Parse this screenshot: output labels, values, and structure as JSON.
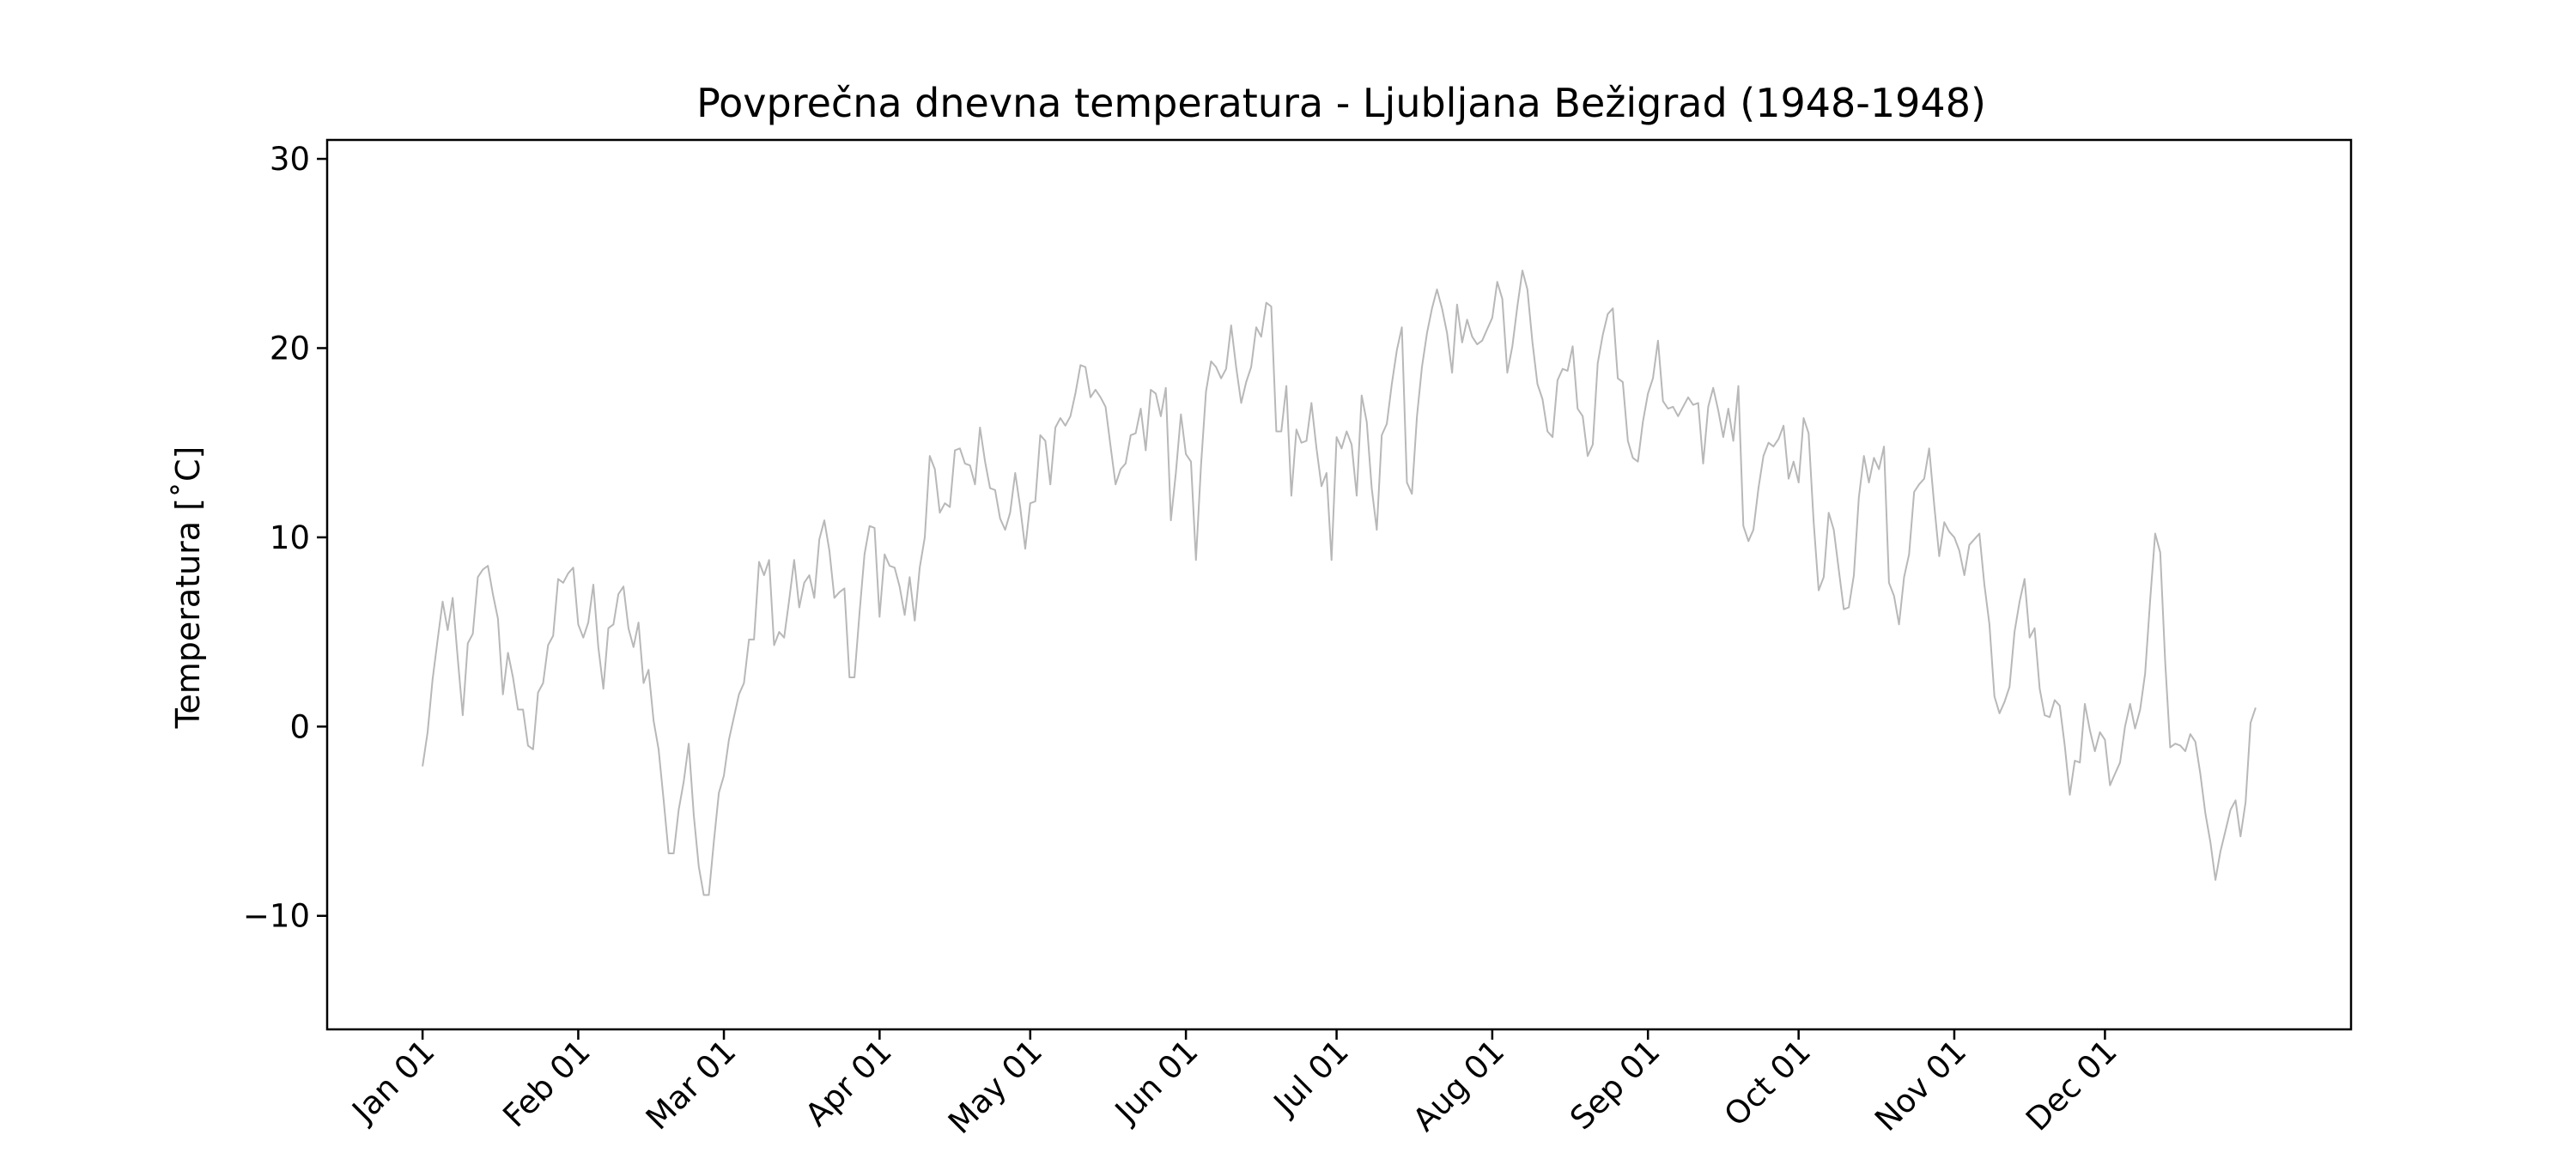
{
  "chart_data": {
    "type": "line",
    "title": "Povprečna dnevna temperatura - Ljubljana Bežigrad (1948-1948)",
    "xlabel": "",
    "ylabel": "Temperatura [˚C]",
    "ylim": [
      -16,
      31
    ],
    "xlim": [
      "1947-12-13",
      "1949-01-19"
    ],
    "grid": false,
    "legend": "none",
    "y_ticks": [
      30,
      20,
      10,
      0,
      -10
    ],
    "y_tick_labels": [
      "30",
      "20",
      "10",
      "0",
      "−10"
    ],
    "x_ticks": [
      {
        "date": "1948-01-01",
        "label": "Jan 01"
      },
      {
        "date": "1948-02-01",
        "label": "Feb 01"
      },
      {
        "date": "1948-03-01",
        "label": "Mar 01"
      },
      {
        "date": "1948-04-01",
        "label": "Apr 01"
      },
      {
        "date": "1948-05-01",
        "label": "May 01"
      },
      {
        "date": "1948-06-01",
        "label": "Jun 01"
      },
      {
        "date": "1948-07-01",
        "label": "Jul 01"
      },
      {
        "date": "1948-08-01",
        "label": "Aug 01"
      },
      {
        "date": "1948-09-01",
        "label": "Sep 01"
      },
      {
        "date": "1948-10-01",
        "label": "Oct 01"
      },
      {
        "date": "1948-11-01",
        "label": "Nov 01"
      },
      {
        "date": "1948-12-01",
        "label": "Dec 01"
      }
    ],
    "series": [
      {
        "color": "#b8b8b8",
        "x_start": "1948-01-01",
        "values": [
          -2.1,
          -0.3,
          2.5,
          4.6,
          6.6,
          5.1,
          6.8,
          3.6,
          0.6,
          4.4,
          4.9,
          7.9,
          8.3,
          8.5,
          7.0,
          5.7,
          1.7,
          3.9,
          2.6,
          0.9,
          0.9,
          -1.0,
          -1.2,
          1.8,
          2.3,
          4.3,
          4.8,
          7.8,
          7.6,
          8.1,
          8.4,
          5.4,
          4.7,
          5.5,
          7.5,
          4.2,
          2.0,
          5.2,
          5.4,
          7.0,
          7.4,
          5.2,
          4.2,
          5.5,
          2.3,
          3.0,
          0.3,
          -1.2,
          -3.9,
          -6.7,
          -6.7,
          -4.4,
          -2.9,
          -0.9,
          -4.7,
          -7.4,
          -8.9,
          -8.9,
          -6.1,
          -3.5,
          -2.6,
          -0.7,
          0.5,
          1.7,
          2.3,
          4.6,
          4.6,
          8.7,
          8.0,
          8.8,
          4.3,
          5.0,
          4.7,
          6.7,
          8.8,
          6.3,
          7.6,
          8.0,
          6.8,
          9.9,
          10.9,
          9.3,
          6.8,
          7.1,
          7.3,
          2.6,
          2.6,
          6.0,
          9.1,
          10.6,
          10.5,
          5.8,
          9.1,
          8.5,
          8.4,
          7.4,
          5.9,
          7.9,
          5.6,
          8.4,
          10.0,
          14.3,
          13.6,
          11.3,
          11.8,
          11.6,
          14.6,
          14.7,
          13.9,
          13.8,
          12.8,
          15.8,
          14.0,
          12.6,
          12.5,
          11.0,
          10.4,
          11.3,
          13.4,
          11.6,
          9.4,
          11.8,
          11.9,
          15.4,
          15.1,
          12.8,
          15.8,
          16.3,
          15.9,
          16.4,
          17.6,
          19.1,
          19.0,
          17.4,
          17.8,
          17.4,
          16.9,
          14.8,
          12.8,
          13.6,
          13.9,
          15.4,
          15.5,
          16.8,
          14.6,
          17.8,
          17.6,
          16.4,
          17.9,
          10.9,
          13.4,
          16.5,
          14.4,
          14.0,
          8.8,
          13.8,
          17.7,
          19.3,
          19.0,
          18.4,
          18.9,
          21.2,
          19.0,
          17.1,
          18.2,
          19.0,
          21.1,
          20.6,
          22.4,
          22.2,
          15.6,
          15.6,
          18.0,
          12.2,
          15.7,
          15.0,
          15.1,
          17.1,
          14.7,
          12.7,
          13.4,
          8.8,
          15.3,
          14.7,
          15.6,
          14.9,
          12.2,
          17.5,
          16.1,
          12.6,
          10.4,
          15.4,
          16.0,
          18.1,
          19.9,
          21.1,
          12.9,
          12.3,
          16.4,
          19.0,
          20.8,
          22.1,
          23.1,
          22.1,
          20.8,
          18.7,
          22.3,
          20.3,
          21.5,
          20.6,
          20.2,
          20.4,
          21.0,
          21.6,
          23.5,
          22.6,
          18.7,
          20.1,
          22.2,
          24.1,
          23.1,
          20.3,
          18.1,
          17.3,
          15.6,
          15.3,
          18.3,
          18.9,
          18.8,
          20.1,
          16.8,
          16.4,
          14.3,
          14.9,
          19.2,
          20.7,
          21.8,
          22.1,
          18.4,
          18.2,
          15.1,
          14.2,
          14.0,
          16.1,
          17.6,
          18.4,
          20.4,
          17.2,
          16.8,
          16.9,
          16.4,
          16.9,
          17.4,
          17.0,
          17.1,
          13.9,
          16.9,
          17.9,
          16.7,
          15.3,
          16.8,
          15.1,
          18.0,
          10.6,
          9.8,
          10.4,
          12.6,
          14.3,
          15.0,
          14.8,
          15.2,
          15.9,
          13.1,
          14.0,
          12.9,
          16.3,
          15.5,
          10.8,
          7.2,
          7.9,
          11.3,
          10.4,
          8.3,
          6.2,
          6.3,
          8.0,
          12.1,
          14.3,
          12.9,
          14.2,
          13.6,
          14.8,
          7.6,
          6.9,
          5.4,
          7.9,
          9.1,
          12.4,
          12.8,
          13.1,
          14.7,
          11.7,
          9.0,
          10.8,
          10.3,
          10.0,
          9.3,
          8.0,
          9.6,
          9.9,
          10.2,
          7.5,
          5.4,
          1.6,
          0.7,
          1.3,
          2.1,
          5.0,
          6.6,
          7.8,
          4.7,
          5.2,
          2.0,
          0.6,
          0.5,
          1.4,
          1.1,
          -1.0,
          -3.6,
          -1.8,
          -1.9,
          1.2,
          -0.2,
          -1.3,
          -0.3,
          -0.7,
          -3.1,
          -2.5,
          -1.9,
          0.0,
          1.2,
          -0.1,
          0.9,
          2.8,
          6.7,
          10.2,
          9.2,
          3.4,
          -1.1,
          -0.9,
          -1.0,
          -1.3,
          -0.4,
          -0.8,
          -2.5,
          -4.6,
          -6.1,
          -8.1,
          -6.6,
          -5.5,
          -4.4,
          -3.9,
          -5.8,
          -4.0,
          0.2,
          1.0
        ]
      }
    ]
  }
}
